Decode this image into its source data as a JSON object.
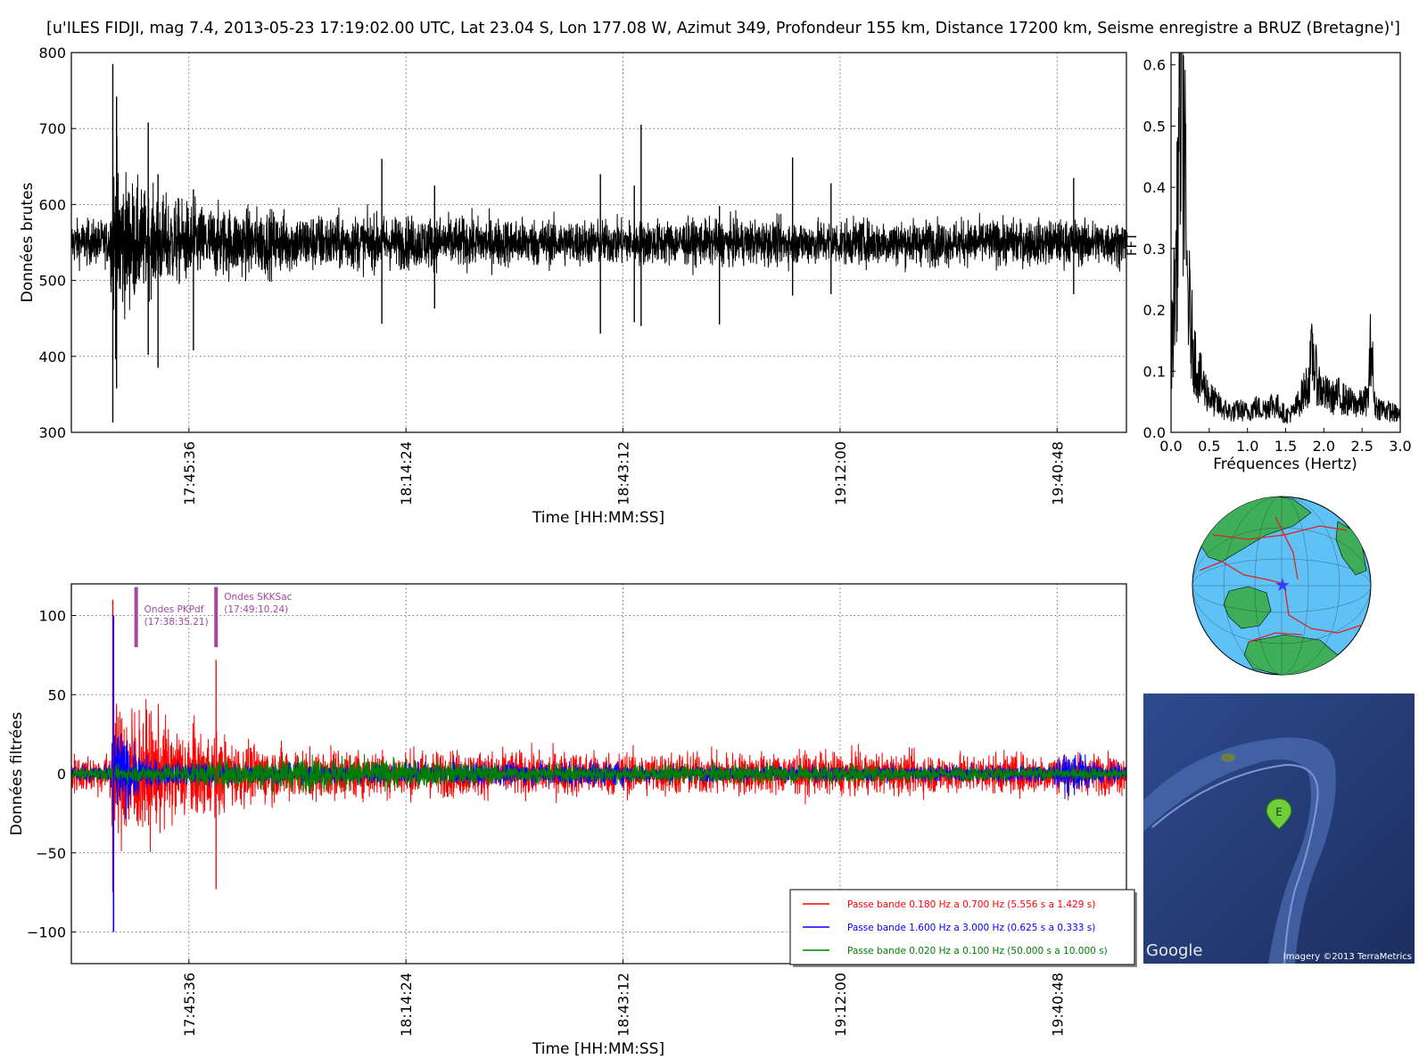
{
  "figure": {
    "title": "[u'ILES FIDJI, mag 7.4, 2013-05-23 17:19:02.00 UTC, Lat 23.04 S, Lon 177.08 W, Azimut 349, Profondeur 155 km, Distance 17200 km, Seisme enregistre a BRUZ (Bretagne)']"
  },
  "colors": {
    "raw": "#000000",
    "band1": "#ff0000",
    "band2": "#0000ff",
    "band3": "#008000",
    "annotation": "#a347a3",
    "globe_ocean": "#5ec2f7",
    "land": "#3fae5a",
    "plates": "#e02020"
  },
  "chart_data": [
    {
      "type": "line",
      "id": "raw",
      "ylabel": "Données brutes",
      "xlabel": "Time [HH:MM:SS]",
      "ylim": [
        300,
        800
      ],
      "yticks": [
        300,
        400,
        500,
        600,
        700,
        800
      ],
      "xlim_min": [
        1050,
        1190
      ],
      "xticks_min": [
        1065.6,
        1094.4,
        1123.2,
        1152.0,
        1180.8
      ],
      "xtick_labels": [
        "17:45:36",
        "18:14:24",
        "18:43:12",
        "19:12:00",
        "19:40:48"
      ],
      "grid": true,
      "baseline": 550,
      "noise_amplitude": 28,
      "envelope": [
        [
          1050,
          1.0
        ],
        [
          1055,
          1.0
        ],
        [
          1055.8,
          4.2
        ],
        [
          1057,
          3.1
        ],
        [
          1060,
          2.2
        ],
        [
          1063,
          2.0
        ],
        [
          1068,
          1.6
        ],
        [
          1075,
          1.5
        ],
        [
          1080,
          1.3
        ],
        [
          1090,
          1.2
        ],
        [
          1100,
          1.15
        ],
        [
          1120,
          1.0
        ],
        [
          1190,
          1.0
        ]
      ],
      "spikes": [
        {
          "t": 1055.5,
          "max": 785,
          "min": 313
        },
        {
          "t": 1056.0,
          "max": 742,
          "min": 358
        },
        {
          "t": 1060.2,
          "max": 708,
          "min": 402
        },
        {
          "t": 1061.5,
          "max": 640,
          "min": 385
        },
        {
          "t": 1066.2,
          "max": 620,
          "min": 408
        },
        {
          "t": 1091.2,
          "max": 660,
          "min": 443
        },
        {
          "t": 1098.2,
          "max": 625,
          "min": 463
        },
        {
          "t": 1120.2,
          "max": 640,
          "min": 430
        },
        {
          "t": 1124.7,
          "max": 625,
          "min": 445
        },
        {
          "t": 1125.6,
          "max": 705,
          "min": 440
        },
        {
          "t": 1136.0,
          "max": 598,
          "min": 442
        },
        {
          "t": 1145.7,
          "max": 662,
          "min": 480
        },
        {
          "t": 1150.8,
          "max": 628,
          "min": 482
        },
        {
          "t": 1183.0,
          "max": 635,
          "min": 482
        }
      ]
    },
    {
      "type": "line",
      "id": "fft",
      "xlabel": "Fréquences (Hertz)",
      "side_label": "FFT",
      "xlim": [
        0.0,
        3.0
      ],
      "ylim": [
        0.0,
        0.62
      ],
      "xticks": [
        0.0,
        0.5,
        1.0,
        1.5,
        2.0,
        2.5,
        3.0
      ],
      "xtick_labels": [
        "0.0",
        "0.5",
        "1.0",
        "1.5",
        "2.0",
        "2.5",
        "3.0"
      ],
      "yticks": [
        0.0,
        0.1,
        0.2,
        0.3,
        0.4,
        0.5,
        0.6
      ],
      "ytick_labels": [
        "0.0",
        "0.1",
        "0.2",
        "0.3",
        "0.4",
        "0.5",
        "0.6"
      ],
      "x": [
        0.0,
        0.02,
        0.05,
        0.08,
        0.1,
        0.12,
        0.15,
        0.18,
        0.2,
        0.22,
        0.25,
        0.28,
        0.3,
        0.33,
        0.36,
        0.4,
        0.45,
        0.5,
        0.55,
        0.6,
        0.65,
        0.7,
        0.8,
        0.9,
        1.0,
        1.1,
        1.2,
        1.3,
        1.4,
        1.5,
        1.6,
        1.7,
        1.8,
        1.85,
        1.9,
        1.95,
        2.0,
        2.1,
        2.2,
        2.3,
        2.4,
        2.5,
        2.58,
        2.62,
        2.66,
        2.7,
        2.8,
        2.9,
        3.0
      ],
      "y": [
        0.12,
        0.18,
        0.25,
        0.35,
        0.5,
        0.6,
        0.58,
        0.48,
        0.3,
        0.25,
        0.2,
        0.16,
        0.14,
        0.12,
        0.1,
        0.09,
        0.075,
        0.065,
        0.055,
        0.05,
        0.045,
        0.04,
        0.035,
        0.04,
        0.035,
        0.045,
        0.04,
        0.05,
        0.045,
        0.03,
        0.035,
        0.06,
        0.09,
        0.14,
        0.1,
        0.08,
        0.07,
        0.06,
        0.065,
        0.055,
        0.05,
        0.05,
        0.06,
        0.17,
        0.05,
        0.045,
        0.04,
        0.035,
        0.03
      ]
    },
    {
      "type": "line",
      "id": "filtered",
      "ylabel": "Données filtrées",
      "xlabel": "Time [HH:MM:SS]",
      "ylim": [
        -120,
        120
      ],
      "yticks": [
        -100,
        -50,
        0,
        50,
        100
      ],
      "ytick_labels": [
        "−100",
        "−50",
        "0",
        "50",
        "100"
      ],
      "xlim_min": [
        1050,
        1190
      ],
      "xticks_min": [
        1065.6,
        1094.4,
        1123.2,
        1152.0,
        1180.8
      ],
      "xtick_labels": [
        "17:45:36",
        "18:14:24",
        "18:43:12",
        "19:12:00",
        "19:40:48"
      ],
      "grid": true,
      "legend_position": "lower-right",
      "series": [
        {
          "name": "Passe bande 0.180 Hz a 0.700 Hz (5.556 s a 1.429 s)",
          "color": "#ff0000",
          "amplitude": 13,
          "envelope": [
            [
              1050,
              1.0
            ],
            [
              1055,
              1.0
            ],
            [
              1055.5,
              3.2
            ],
            [
              1058,
              3.8
            ],
            [
              1061,
              3.0
            ],
            [
              1064,
              2.4
            ],
            [
              1068,
              2.2
            ],
            [
              1072,
              1.6
            ],
            [
              1080,
              1.3
            ],
            [
              1090,
              1.2
            ],
            [
              1110,
              1.15
            ],
            [
              1150,
              1.05
            ],
            [
              1190,
              1.0
            ]
          ],
          "peak_max": 110,
          "peak_min": -95
        },
        {
          "name": "Passe bande 1.600 Hz a 3.000 Hz (0.625 s a 0.333 s)",
          "color": "#0000ff",
          "amplitude": 5,
          "envelope": [
            [
              1050,
              1.0
            ],
            [
              1055,
              1.0
            ],
            [
              1055.5,
              6.5
            ],
            [
              1057,
              5.0
            ],
            [
              1059,
              2.5
            ],
            [
              1062,
              1.6
            ],
            [
              1070,
              1.3
            ],
            [
              1080,
              1.2
            ],
            [
              1123,
              1.6
            ],
            [
              1125,
              1.1
            ],
            [
              1150,
              1.0
            ],
            [
              1180,
              1.2
            ],
            [
              1183,
              3.0
            ],
            [
              1186,
              1.3
            ],
            [
              1190,
              1.0
            ]
          ],
          "peak_max": 100,
          "peak_min": -100
        },
        {
          "name": "Passe bande 0.020 Hz a 0.100 Hz (50.000 s a 10.000 s)",
          "color": "#008000",
          "amplitude": 4,
          "envelope": [
            [
              1050,
              1.0
            ],
            [
              1058,
              1.4
            ],
            [
              1070,
              2.2
            ],
            [
              1080,
              2.8
            ],
            [
              1095,
              2.2
            ],
            [
              1110,
              1.4
            ],
            [
              1130,
              1.5
            ],
            [
              1150,
              1.6
            ],
            [
              1170,
              1.2
            ],
            [
              1190,
              1.0
            ]
          ],
          "peak_max": 15,
          "peak_min": -15
        }
      ],
      "annotations": [
        {
          "label": "Ondes PKPdf",
          "time": "(17:38:35.21)",
          "t": 1058.6,
          "y": 0
        },
        {
          "label": "Ondes SKKSac",
          "time": "(17:49:10.24)",
          "t": 1069.2,
          "y": 0
        }
      ]
    }
  ],
  "map": {
    "google_label": "Google",
    "imagery_label": "Imagery ©2013 TerraMetrics",
    "marker_label": "E"
  }
}
